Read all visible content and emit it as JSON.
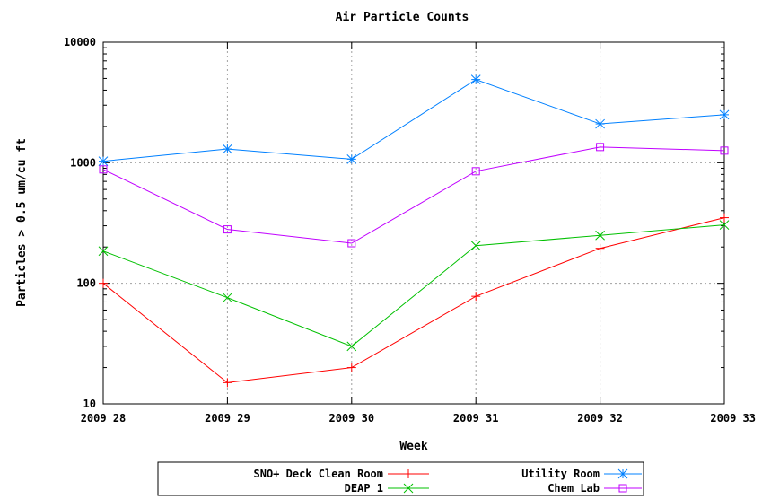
{
  "chart_data": {
    "type": "line",
    "title": "Air Particle Counts",
    "xlabel": "Week",
    "ylabel": "Particles > 0.5 um/cu ft",
    "yscale": "log",
    "ylim": [
      10,
      10000
    ],
    "yticks": [
      "10",
      "100",
      "1000",
      "10000"
    ],
    "yticks_values": [
      10,
      100,
      1000,
      10000
    ],
    "categories": [
      "2009 28",
      "2009 29",
      "2009 30",
      "2009 31",
      "2009 32",
      "2009 33"
    ],
    "grid": true,
    "legend_position": "bottom",
    "series": [
      {
        "name": "SNO+ Deck Clean Room",
        "color": "#ff0000",
        "marker": "plus",
        "values": [
          100,
          15,
          20,
          78,
          195,
          350
        ]
      },
      {
        "name": "DEAP 1",
        "color": "#00c000",
        "marker": "cross",
        "values": [
          185,
          76,
          30,
          205,
          250,
          305
        ]
      },
      {
        "name": "Utility Room",
        "color": "#0080ff",
        "marker": "star",
        "values": [
          1030,
          1300,
          1070,
          4900,
          2100,
          2500
        ]
      },
      {
        "name": "Chem Lab",
        "color": "#c000ff",
        "marker": "square",
        "values": [
          880,
          280,
          215,
          850,
          1350,
          1260
        ]
      }
    ]
  }
}
